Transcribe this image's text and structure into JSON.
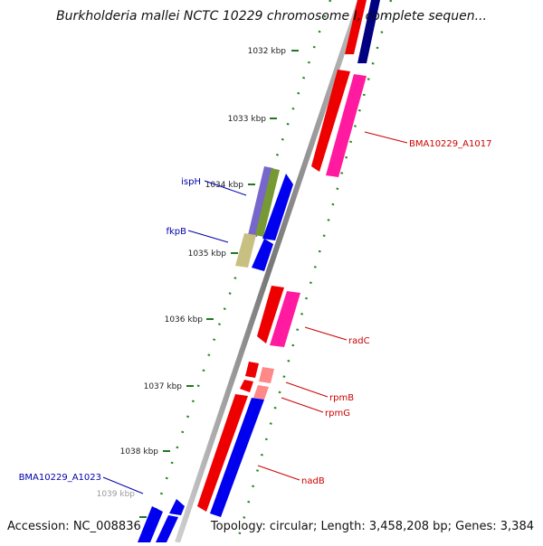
{
  "header": {
    "title": "Burkholderia mallei NCTC 10229 chromosome I, complete sequen..."
  },
  "footer": {
    "accession": "Accession: NC_008836",
    "summary": "Topology: circular; Length: 3,458,208 bp; Genes: 3,384"
  },
  "scale": {
    "ticks": [
      "1032 kbp",
      "1033 kbp",
      "1034 kbp",
      "1035 kbp",
      "1036 kbp",
      "1037 kbp",
      "1038 kbp",
      "1039 kbp"
    ]
  },
  "genes": {
    "forward": [
      "BMA10229_A1023",
      "ispH",
      "fkpB"
    ],
    "reverse": [
      "BMA10229_A1017",
      "radC",
      "rpmB",
      "rpmG",
      "nadB"
    ]
  },
  "colors": {
    "forward_label": "#0000aa",
    "reverse_label": "#cc0000",
    "cds_forward": "#0000ee",
    "cds_reverse": "#ee0000",
    "feature_magenta": "#ff1aa0",
    "feature_purple": "#7766cc",
    "feature_olive": "#779933",
    "feature_khaki": "#c8c080",
    "feature_navy": "#000080",
    "rna_pink": "#ff8888",
    "backbone": "#777777",
    "tick": "#227722"
  }
}
